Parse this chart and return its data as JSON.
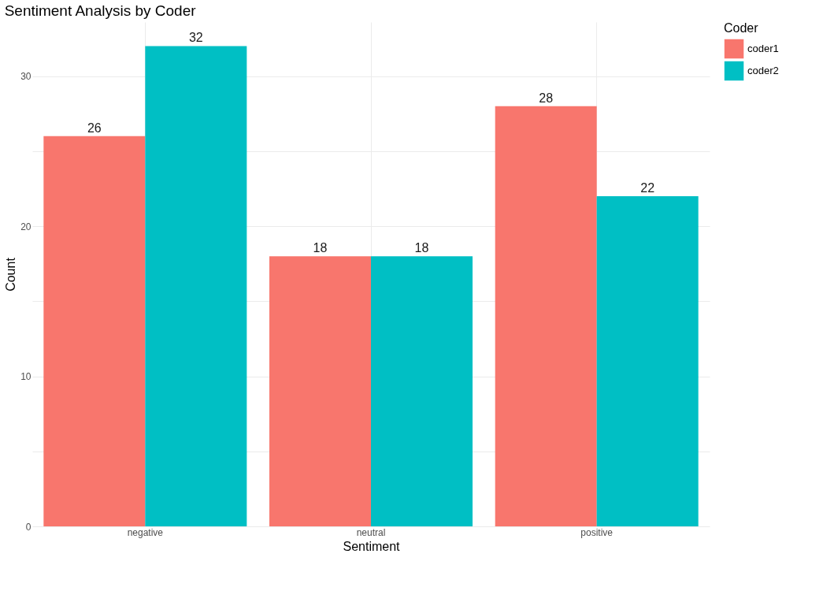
{
  "chart_data": {
    "type": "bar",
    "title": "Sentiment Analysis by Coder",
    "xlabel": "Sentiment",
    "ylabel": "Count",
    "legend_title": "Coder",
    "categories": [
      "negative",
      "neutral",
      "positive"
    ],
    "series": [
      {
        "name": "coder1",
        "color": "#f8766d",
        "values": [
          26,
          18,
          28
        ]
      },
      {
        "name": "coder2",
        "color": "#00bfc4",
        "values": [
          32,
          18,
          22
        ]
      }
    ],
    "ylim": [
      0,
      33.6
    ],
    "yticks": [
      0,
      {
        "value": 5,
        "label": null
      },
      10,
      {
        "value": 15,
        "label": null
      },
      20,
      {
        "value": 25,
        "label": null
      },
      30
    ],
    "grid": true,
    "legend": "right",
    "data_labels": true
  }
}
